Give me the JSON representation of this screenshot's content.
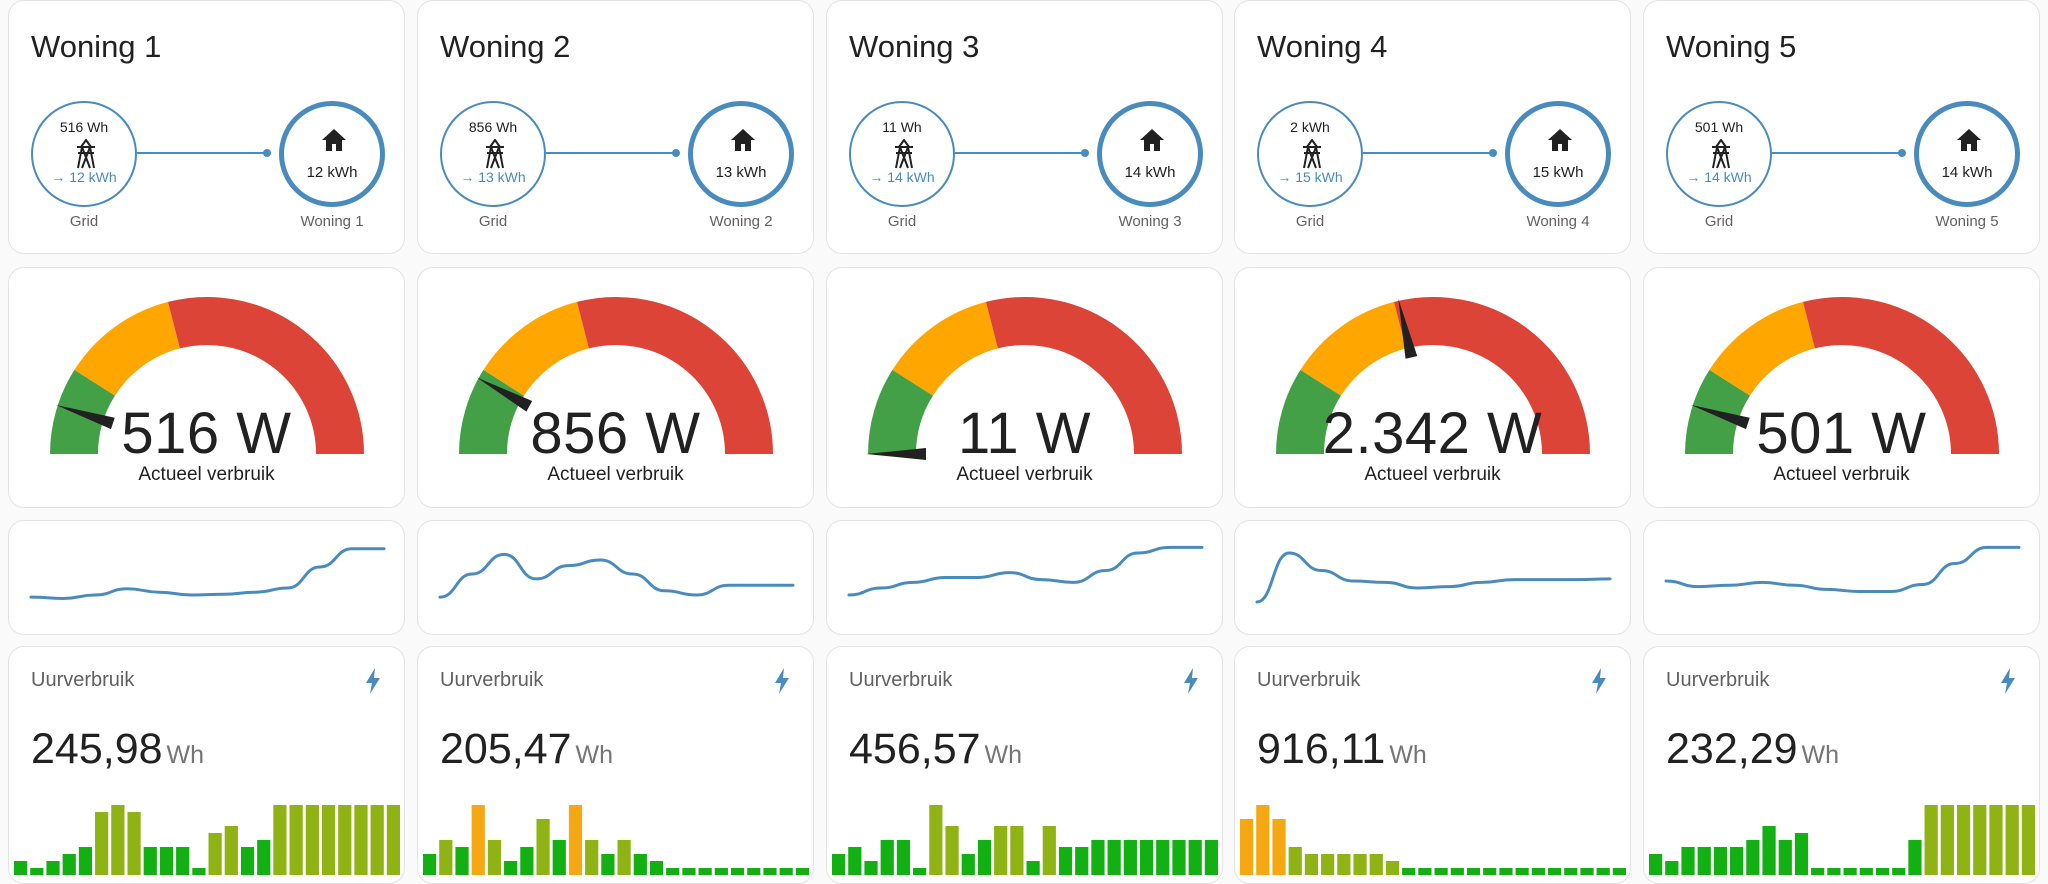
{
  "node_label_grid": "Grid",
  "gauge_label": "Actueel verbruik",
  "usage_title": "Uurverbruik",
  "usage_unit": "Wh",
  "colors": {
    "accent": "#4a8bbd",
    "gauge_green": "#43a047",
    "gauge_orange": "#ffa600",
    "gauge_red": "#db4437",
    "bar_green": "#12b012",
    "bar_olive": "#8fb315",
    "bar_orange": "#f5a814"
  },
  "icons": {
    "grid": "transmission-tower-icon",
    "home": "home-icon",
    "usage": "lightning-bolt-icon"
  },
  "homes": [
    {
      "title": "Woning 1",
      "grid_import": "516 Wh",
      "grid_return": "→ 12 kWh",
      "home_value": "12 kWh",
      "home_label": "Woning 1",
      "gauge_value": "516 W",
      "gauge_fraction": 0.1,
      "sparkline": [
        0.83,
        0.85,
        0.8,
        0.71,
        0.76,
        0.8,
        0.79,
        0.76,
        0.7,
        0.4,
        0.14,
        0.14
      ],
      "usage_value": "245,98",
      "usage_bars": [
        2,
        1,
        2,
        3,
        4,
        9,
        10,
        9,
        4,
        4,
        4,
        1,
        6,
        7,
        4,
        5,
        10,
        10,
        10,
        10,
        10,
        10,
        10,
        10
      ],
      "usage_bar_colors": [
        "g",
        "g",
        "g",
        "g",
        "g",
        "o",
        "o",
        "o",
        "g",
        "g",
        "g",
        "g",
        "o",
        "o",
        "g",
        "g",
        "o",
        "o",
        "o",
        "o",
        "o",
        "o",
        "o",
        "o"
      ]
    },
    {
      "title": "Woning 2",
      "grid_import": "856 Wh",
      "grid_return": "→ 13 kWh",
      "home_value": "13 kWh",
      "home_label": "Woning 2",
      "gauge_value": "856 W",
      "gauge_fraction": 0.16,
      "sparkline": [
        0.83,
        0.5,
        0.22,
        0.57,
        0.38,
        0.3,
        0.5,
        0.74,
        0.8,
        0.66,
        0.66,
        0.66
      ],
      "usage_value": "205,47",
      "usage_bars": [
        3,
        5,
        4,
        10,
        5,
        2,
        4,
        8,
        5,
        10,
        5,
        3,
        5,
        3,
        2,
        1,
        1,
        1,
        1,
        1,
        1,
        1,
        1,
        1
      ],
      "usage_bar_colors": [
        "g",
        "o",
        "g",
        "y",
        "o",
        "g",
        "g",
        "o",
        "g",
        "y",
        "o",
        "g",
        "o",
        "g",
        "g",
        "g",
        "g",
        "g",
        "g",
        "g",
        "g",
        "g",
        "g",
        "g"
      ]
    },
    {
      "title": "Woning 3",
      "grid_import": "11 Wh",
      "grid_return": "→ 14 kWh",
      "home_value": "14 kWh",
      "home_label": "Woning 3",
      "gauge_value": "11 W",
      "gauge_fraction": 0.0,
      "sparkline": [
        0.8,
        0.7,
        0.62,
        0.55,
        0.55,
        0.48,
        0.58,
        0.62,
        0.45,
        0.2,
        0.12,
        0.12
      ],
      "usage_value": "456,57",
      "usage_bars": [
        3,
        4,
        2,
        5,
        5,
        1,
        10,
        7,
        3,
        5,
        7,
        7,
        2,
        7,
        4,
        4,
        5,
        5,
        5,
        5,
        5,
        5,
        5,
        5
      ],
      "usage_bar_colors": [
        "g",
        "g",
        "g",
        "g",
        "g",
        "g",
        "o",
        "o",
        "g",
        "g",
        "o",
        "o",
        "g",
        "o",
        "g",
        "g",
        "g",
        "g",
        "g",
        "g",
        "g",
        "g",
        "g",
        "g"
      ]
    },
    {
      "title": "Woning 4",
      "grid_import": "2 kWh",
      "grid_return": "→ 15 kWh",
      "home_value": "15 kWh",
      "home_label": "Woning 4",
      "gauge_value": "2.342 W",
      "gauge_fraction": 0.43,
      "sparkline": [
        0.9,
        0.2,
        0.45,
        0.6,
        0.62,
        0.7,
        0.68,
        0.62,
        0.58,
        0.58,
        0.58,
        0.57
      ],
      "usage_value": "916,11",
      "usage_bars": [
        8,
        10,
        8,
        4,
        3,
        3,
        3,
        3,
        3,
        2,
        1,
        1,
        1,
        1,
        1,
        1,
        1,
        1,
        1,
        1,
        1,
        1,
        1,
        1
      ],
      "usage_bar_colors": [
        "y",
        "y",
        "y",
        "o",
        "o",
        "o",
        "o",
        "o",
        "o",
        "o",
        "g",
        "g",
        "g",
        "g",
        "g",
        "g",
        "g",
        "g",
        "g",
        "g",
        "g",
        "g",
        "g",
        "g"
      ]
    },
    {
      "title": "Woning 5",
      "grid_import": "501 Wh",
      "grid_return": "→ 14 kWh",
      "home_value": "14 kWh",
      "home_label": "Woning 5",
      "gauge_value": "501 W",
      "gauge_fraction": 0.1,
      "sparkline": [
        0.6,
        0.68,
        0.66,
        0.62,
        0.66,
        0.72,
        0.75,
        0.75,
        0.65,
        0.35,
        0.12,
        0.12
      ],
      "usage_value": "232,29",
      "usage_bars": [
        3,
        2,
        4,
        4,
        4,
        4,
        5,
        7,
        5,
        6,
        1,
        1,
        1,
        1,
        1,
        1,
        5,
        10,
        10,
        10,
        10,
        10,
        10,
        10
      ],
      "usage_bar_colors": [
        "g",
        "g",
        "g",
        "g",
        "g",
        "g",
        "g",
        "g",
        "g",
        "g",
        "g",
        "g",
        "g",
        "g",
        "g",
        "g",
        "g",
        "o",
        "o",
        "o",
        "o",
        "o",
        "o",
        "o"
      ]
    }
  ]
}
